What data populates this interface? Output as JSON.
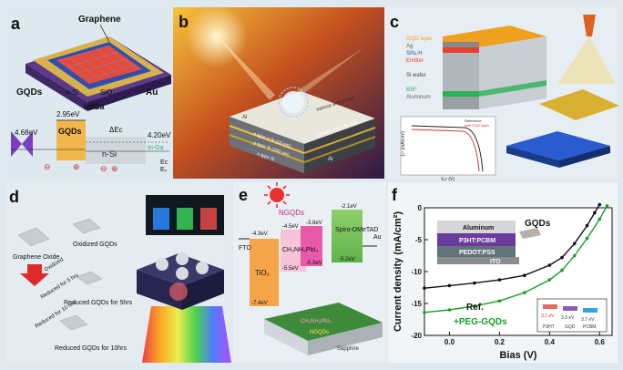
{
  "panels": {
    "a": {
      "letter": "a",
      "graphene": "Graphene",
      "gqds": "GQDs",
      "nsi": "n-Si",
      "sio2": "SiO₂",
      "au": "Au",
      "inga": "In/Ga",
      "e295": "2.95eV",
      "e468": "4.68eV",
      "e420": "4.20eV",
      "gqds_band": "GQDs",
      "nsi_band": "n-Si",
      "inga_band": "In-Ga",
      "deltaEc": "ΔEᴄ",
      "ec": "Eᴄ",
      "ef": "Eᶠ",
      "ev": "Eᵥ",
      "minus": "⊖",
      "plus": "⊕"
    },
    "b": {
      "letter": "b",
      "al": "Al",
      "nsi1": "Intrinsic a-Si (2 nm)",
      "nsi2": "n-type a-Si (10 nm)",
      "nsi3": "Intrinsic a-Si (10 nm)",
      "psi": "p-type Si (200 um)",
      "nsi4": "n-type Si",
      "alb": "Al"
    },
    "c": {
      "letter": "c",
      "layers": [
        "GQD layer",
        "Ag",
        "SiNₓ:H",
        "Emitter",
        "",
        "Si wafer",
        "",
        "BSF",
        "Aluminum"
      ],
      "inset_ylabel": "Jₛᶜ (mA/cm²)",
      "inset_xlabel": "Vₒᶜ (V)",
      "inset_legend": [
        "Reference",
        "with GQD layer"
      ]
    },
    "d": {
      "letter": "d",
      "go": "Graphene Oxide",
      "oxidized": "Oxidized GQDs",
      "oxidized_arrow": "Oxidized",
      "reduced5": "Reduced GQDs for 5hrs",
      "reduced10": "Reduced GQDs for 10hrs",
      "arrow5": "Reduced for 5 hrs",
      "arrow10": "Reduced for 10 hrs"
    },
    "e": {
      "letter": "e",
      "fto": "FTO",
      "tio2": "TiO₂",
      "ngqds": "NGQDs",
      "perov": "CH₃NH₃PbI₃",
      "spiro": "Spiro-OMeTAD",
      "au": "Au",
      "e43": "-4.3eV",
      "e74": "-7.4eV",
      "e45": "-4.5eV",
      "e55": "-5.5eV",
      "e38": "-3.8eV",
      "e53": "-5.3eV",
      "e21": "-2.1eV",
      "e52": "-5.2eV",
      "sub_perov": "CH₃NH₃PbI₃",
      "sub_ngqds": "NGQDs",
      "sub_sapphire": "Sapphire"
    },
    "f": {
      "letter": "f",
      "aluminum": "Aluminum",
      "p3ht": "P3HT:PCBM",
      "pedot": "PEDOT:PSS",
      "ito": "ITO",
      "gqds": "GQDs",
      "ref": "Ref.",
      "peg": "+PEG-GQDs",
      "lv1": "3.1 eV",
      "lv2": "3.3 eV",
      "lv3": "3.7 eV",
      "ln1": "P3HT",
      "ln2": "GQD",
      "ln3": "PCBM"
    }
  },
  "chart_data": {
    "type": "line",
    "xlabel": "Bias (V)",
    "ylabel": "Current density (mA/cm²)",
    "xlim": [
      -0.1,
      0.65
    ],
    "ylim": [
      -20,
      0
    ],
    "x_ticks": [
      "0.0",
      "0.2",
      "0.4",
      "0.6"
    ],
    "y_ticks": [
      "0",
      "-5",
      "-10",
      "-15",
      "-20"
    ],
    "series": [
      {
        "name": "Ref.",
        "color": "#111111",
        "x": [
          -0.1,
          0.0,
          0.1,
          0.2,
          0.3,
          0.4,
          0.45,
          0.5,
          0.55,
          0.58,
          0.6
        ],
        "y": [
          -12.6,
          -12.2,
          -11.8,
          -11.3,
          -10.6,
          -9.0,
          -7.8,
          -5.6,
          -2.8,
          -0.8,
          0.5
        ]
      },
      {
        "name": "+PEG-GQDs",
        "color": "#1a9e2a",
        "x": [
          -0.1,
          0.0,
          0.1,
          0.2,
          0.3,
          0.4,
          0.45,
          0.5,
          0.55,
          0.6,
          0.63
        ],
        "y": [
          -16.4,
          -16.0,
          -15.4,
          -14.6,
          -13.3,
          -11.3,
          -9.8,
          -7.5,
          -4.8,
          -1.8,
          0.3
        ]
      }
    ]
  }
}
